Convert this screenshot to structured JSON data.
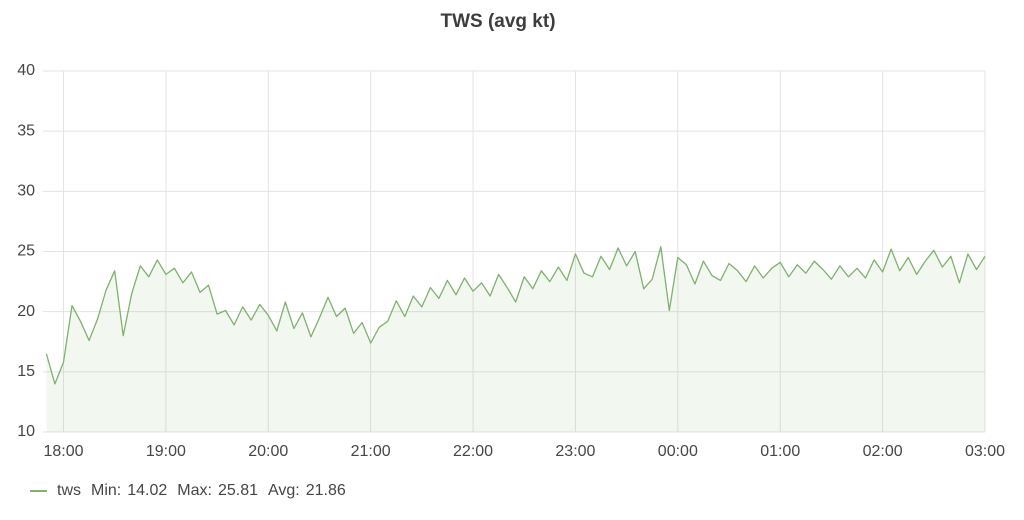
{
  "chart_data": {
    "type": "line",
    "title": "TWS (avg kt)",
    "x": [
      "17:50",
      "17:55",
      "18:00",
      "18:05",
      "18:10",
      "18:15",
      "18:20",
      "18:25",
      "18:30",
      "18:35",
      "18:40",
      "18:45",
      "18:50",
      "18:55",
      "19:00",
      "19:05",
      "19:10",
      "19:15",
      "19:20",
      "19:25",
      "19:30",
      "19:35",
      "19:40",
      "19:45",
      "19:50",
      "19:55",
      "20:00",
      "20:05",
      "20:10",
      "20:15",
      "20:20",
      "20:25",
      "20:30",
      "20:35",
      "20:40",
      "20:45",
      "20:50",
      "20:55",
      "21:00",
      "21:05",
      "21:10",
      "21:15",
      "21:20",
      "21:25",
      "21:30",
      "21:35",
      "21:40",
      "21:45",
      "21:50",
      "21:55",
      "22:00",
      "22:05",
      "22:10",
      "22:15",
      "22:20",
      "22:25",
      "22:30",
      "22:35",
      "22:40",
      "22:45",
      "22:50",
      "22:55",
      "23:00",
      "23:05",
      "23:10",
      "23:15",
      "23:20",
      "23:25",
      "23:30",
      "23:35",
      "23:40",
      "23:45",
      "23:50",
      "23:55",
      "00:00",
      "00:05",
      "00:10",
      "00:15",
      "00:20",
      "00:25",
      "00:30",
      "00:35",
      "00:40",
      "00:45",
      "00:50",
      "00:55",
      "01:00",
      "01:05",
      "01:10",
      "01:15",
      "01:20",
      "01:25",
      "01:30",
      "01:35",
      "01:40",
      "01:45",
      "01:50",
      "01:55",
      "02:00",
      "02:05",
      "02:10",
      "02:15",
      "02:20",
      "02:25",
      "02:30",
      "02:35",
      "02:40",
      "02:45",
      "02:50",
      "02:55",
      "03:00"
    ],
    "series": [
      {
        "name": "tws",
        "color": "#7eb26d",
        "values": [
          16.5,
          14.0,
          15.8,
          20.5,
          19.2,
          17.6,
          19.4,
          21.8,
          23.4,
          18.0,
          21.5,
          23.8,
          22.9,
          24.3,
          23.1,
          23.6,
          22.4,
          23.3,
          21.6,
          22.2,
          19.8,
          20.1,
          18.9,
          20.4,
          19.3,
          20.6,
          19.7,
          18.4,
          20.8,
          18.6,
          19.9,
          17.9,
          19.5,
          21.2,
          19.6,
          20.3,
          18.2,
          19.1,
          17.4,
          18.7,
          19.2,
          20.9,
          19.6,
          21.3,
          20.4,
          22.0,
          21.1,
          22.6,
          21.4,
          22.8,
          21.7,
          22.4,
          21.3,
          23.1,
          22.0,
          20.8,
          22.9,
          21.9,
          23.4,
          22.5,
          23.7,
          22.6,
          24.8,
          23.2,
          22.9,
          24.6,
          23.5,
          25.3,
          23.8,
          25.0,
          21.9,
          22.7,
          25.4,
          20.1,
          24.5,
          23.9,
          22.3,
          24.2,
          23.0,
          22.6,
          24.0,
          23.4,
          22.5,
          23.8,
          22.8,
          23.6,
          24.1,
          22.9,
          23.9,
          23.2,
          24.2,
          23.5,
          22.7,
          23.8,
          22.9,
          23.6,
          22.8,
          24.3,
          23.3,
          25.2,
          23.4,
          24.5,
          23.1,
          24.2,
          25.1,
          23.7,
          24.6,
          22.4,
          24.8,
          23.5,
          24.6
        ]
      }
    ],
    "xlim": [
      "17:48",
      "03:00"
    ],
    "xticks": [
      "18:00",
      "19:00",
      "20:00",
      "21:00",
      "22:00",
      "23:00",
      "00:00",
      "01:00",
      "02:00",
      "03:00"
    ],
    "ylim": [
      10,
      40
    ],
    "yticks": [
      10,
      15,
      20,
      25,
      30,
      35,
      40
    ],
    "grid": true,
    "legend_stats": [
      {
        "label": "Min:",
        "value": 14.02
      },
      {
        "label": "Max:",
        "value": 25.81
      },
      {
        "label": "Avg:",
        "value": 21.86
      }
    ]
  }
}
